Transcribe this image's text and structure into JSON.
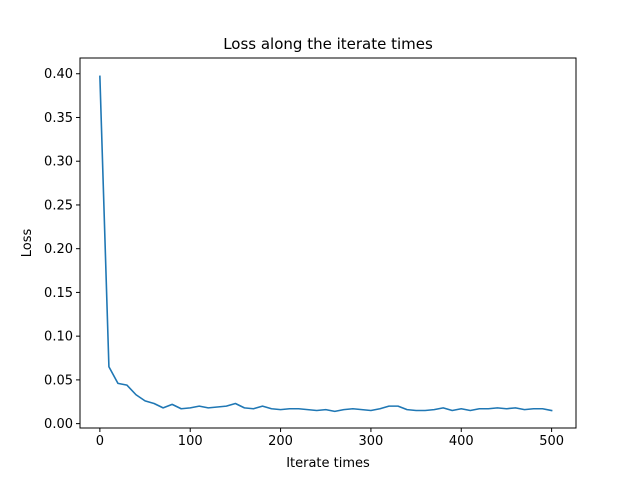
{
  "chart_data": {
    "type": "line",
    "title": "Loss along the iterate times",
    "xlabel": "Iterate times",
    "ylabel": "Loss",
    "xlim": [
      -22,
      527
    ],
    "ylim": [
      -0.005,
      0.418
    ],
    "xticks": [
      0,
      100,
      200,
      300,
      400,
      500
    ],
    "xtick_labels": [
      "0",
      "100",
      "200",
      "300",
      "400",
      "500"
    ],
    "yticks": [
      0.0,
      0.05,
      0.1,
      0.15,
      0.2,
      0.25,
      0.3,
      0.35,
      0.4
    ],
    "ytick_labels": [
      "0.00",
      "0.05",
      "0.10",
      "0.15",
      "0.20",
      "0.25",
      "0.30",
      "0.35",
      "0.40"
    ],
    "grid": false,
    "line_color": "#1f77b4",
    "series": [
      {
        "x": [
          0,
          10,
          20,
          30,
          40,
          50,
          60,
          70,
          80,
          90,
          100,
          110,
          120,
          130,
          140,
          150,
          160,
          170,
          180,
          190,
          200,
          210,
          220,
          230,
          240,
          250,
          260,
          270,
          280,
          290,
          300,
          310,
          320,
          330,
          340,
          350,
          360,
          370,
          380,
          390,
          400,
          410,
          420,
          430,
          440,
          450,
          460,
          470,
          480,
          490,
          500
        ],
        "values": [
          0.397,
          0.065,
          0.046,
          0.044,
          0.033,
          0.026,
          0.023,
          0.018,
          0.022,
          0.017,
          0.018,
          0.02,
          0.018,
          0.019,
          0.02,
          0.023,
          0.018,
          0.017,
          0.02,
          0.017,
          0.016,
          0.017,
          0.017,
          0.016,
          0.015,
          0.016,
          0.014,
          0.016,
          0.017,
          0.016,
          0.015,
          0.017,
          0.02,
          0.02,
          0.016,
          0.015,
          0.015,
          0.016,
          0.018,
          0.015,
          0.017,
          0.015,
          0.017,
          0.017,
          0.018,
          0.017,
          0.018,
          0.016,
          0.017,
          0.017,
          0.015
        ]
      }
    ]
  }
}
